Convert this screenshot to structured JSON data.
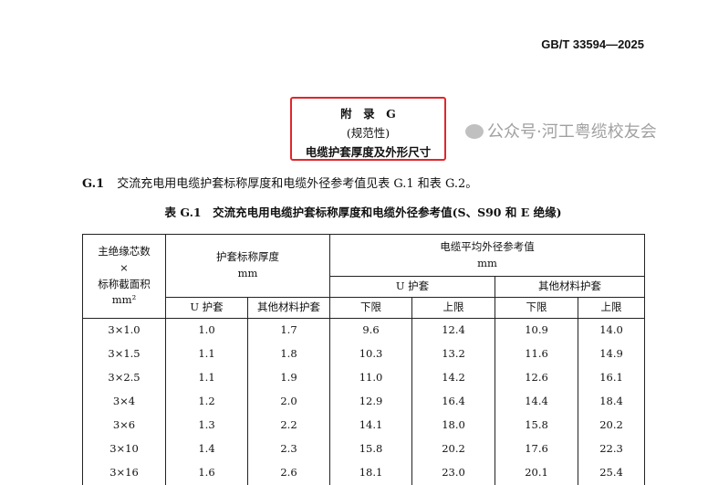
{
  "header": {
    "standard_number": "GB/T 33594—2025"
  },
  "appendix": {
    "title": "附　录　G",
    "type": "(规范性)",
    "name": "电缆护套厚度及外形尺寸",
    "highlight_color": "#e0262b"
  },
  "paragraph": {
    "clause": "G.1",
    "text": "交流充电用电缆护套标称厚度和电缆外径参考值见表 G.1 和表 G.2。"
  },
  "table": {
    "caption": "表 G.1　交流充电用电缆护套标称厚度和电缆外径参考值(S、S90 和 E 绝缘)",
    "col1_header": [
      "主绝缘芯数",
      "×",
      "标称截面积",
      "mm²"
    ],
    "sheath_thickness": {
      "label": "护套标称厚度",
      "unit": "mm",
      "sub": [
        "U 护套",
        "其他材料护套"
      ]
    },
    "outer_diameter": {
      "label": "电缆平均外径参考值",
      "unit": "mm",
      "groups": [
        "U 护套",
        "其他材料护套"
      ],
      "sub": [
        "下限",
        "上限",
        "下限",
        "上限"
      ]
    },
    "rows": [
      [
        "3×1.0",
        "1.0",
        "1.7",
        "9.6",
        "12.4",
        "10.9",
        "14.0"
      ],
      [
        "3×1.5",
        "1.1",
        "1.8",
        "10.3",
        "13.2",
        "11.6",
        "14.9"
      ],
      [
        "3×2.5",
        "1.1",
        "1.9",
        "11.0",
        "14.2",
        "12.6",
        "16.1"
      ],
      [
        "3×4",
        "1.2",
        "2.0",
        "12.9",
        "16.4",
        "14.4",
        "18.4"
      ],
      [
        "3×6",
        "1.3",
        "2.2",
        "14.1",
        "18.0",
        "15.8",
        "20.2"
      ],
      [
        "3×10",
        "1.4",
        "2.3",
        "15.8",
        "20.2",
        "17.6",
        "22.3"
      ],
      [
        "3×16",
        "1.6",
        "2.6",
        "18.1",
        "23.0",
        "20.1",
        "25.4"
      ]
    ]
  },
  "watermark": {
    "text": "公众号·河工粤缆校友会",
    "icon": "wechat-icon"
  }
}
